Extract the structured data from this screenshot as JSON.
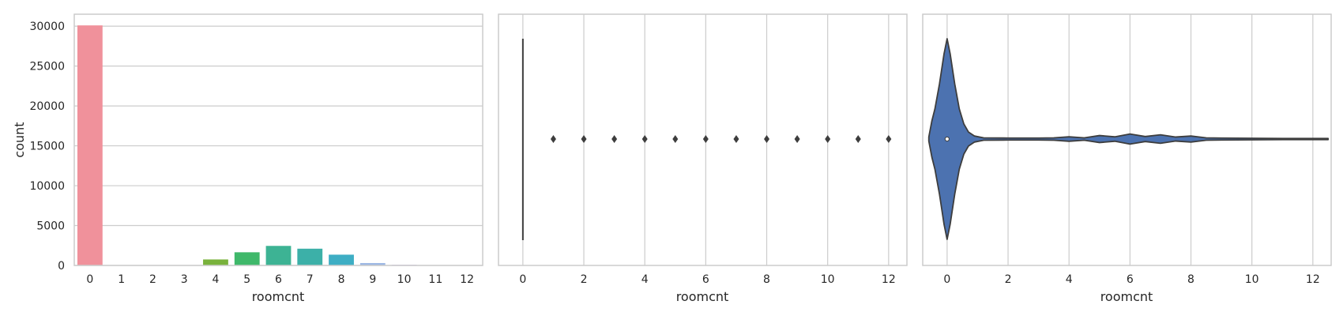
{
  "chart_data": [
    {
      "type": "bar",
      "categories": [
        "0",
        "1",
        "2",
        "3",
        "4",
        "5",
        "6",
        "7",
        "8",
        "9",
        "10",
        "11",
        "12"
      ],
      "values": [
        30100,
        40,
        20,
        30,
        750,
        1650,
        2450,
        2100,
        1350,
        300,
        80,
        40,
        30
      ],
      "colors": [
        "#f0919b",
        "#e8956a",
        "#c9a340",
        "#a9ab3c",
        "#79b23c",
        "#3fb86a",
        "#3db394",
        "#3cb0a8",
        "#3eaec4",
        "#9cb7e4",
        "#b9a6ea",
        "#dca0e4",
        "#f092c6"
      ],
      "xlabel": "roomcnt",
      "ylabel": "count",
      "ylim": [
        0,
        31500
      ],
      "yticks": [
        0,
        5000,
        10000,
        15000,
        20000,
        25000,
        30000
      ],
      "grid": "y"
    },
    {
      "type": "box",
      "xlabel": "roomcnt",
      "xlim": [
        -0.8,
        12.6
      ],
      "xticks": [
        0,
        2,
        4,
        6,
        8,
        10,
        12
      ],
      "box": {
        "q1": 0,
        "median": 0,
        "q3": 0,
        "whisker_low": 0,
        "whisker_high": 0
      },
      "outliers": [
        1,
        2,
        3,
        4,
        5,
        6,
        7,
        8,
        9,
        10,
        11,
        12
      ],
      "color": "#4c72b0",
      "grid": "x"
    },
    {
      "type": "violin",
      "xlabel": "roomcnt",
      "xlim": [
        -0.8,
        12.6
      ],
      "xticks": [
        0,
        2,
        4,
        6,
        8,
        10,
        12
      ],
      "median": 0,
      "color": "#4c72b0",
      "density": [
        [
          -0.6,
          0.02
        ],
        [
          -0.5,
          0.18
        ],
        [
          -0.4,
          0.3
        ],
        [
          -0.25,
          0.55
        ],
        [
          -0.1,
          0.85
        ],
        [
          0,
          1.0
        ],
        [
          0.1,
          0.85
        ],
        [
          0.25,
          0.55
        ],
        [
          0.4,
          0.3
        ],
        [
          0.55,
          0.15
        ],
        [
          0.7,
          0.07
        ],
        [
          0.9,
          0.03
        ],
        [
          1.2,
          0.012
        ],
        [
          2,
          0.01
        ],
        [
          3,
          0.01
        ],
        [
          3.5,
          0.012
        ],
        [
          4,
          0.022
        ],
        [
          4.5,
          0.012
        ],
        [
          5,
          0.035
        ],
        [
          5.5,
          0.022
        ],
        [
          6,
          0.05
        ],
        [
          6.5,
          0.025
        ],
        [
          7,
          0.042
        ],
        [
          7.5,
          0.02
        ],
        [
          8,
          0.03
        ],
        [
          8.5,
          0.012
        ],
        [
          9,
          0.01
        ],
        [
          10,
          0.008
        ],
        [
          11,
          0.006
        ],
        [
          12,
          0.006
        ],
        [
          12.5,
          0.006
        ]
      ],
      "grid": "x"
    }
  ]
}
